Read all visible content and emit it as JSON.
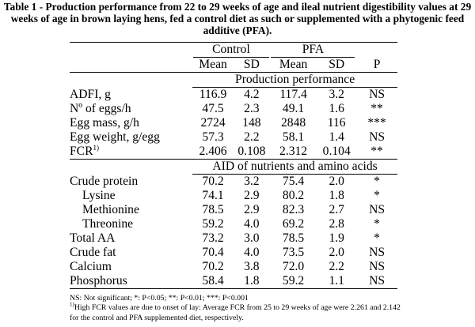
{
  "caption": "Table 1 - Production performance from 22 to 29 weeks of age and ileal nutrient digestibility values at 29 weeks of age in brown laying hens, fed a control diet as such or supplemented with a phytogenic feed additive (PFA).",
  "header": {
    "group_control": "Control",
    "group_pfa": "PFA",
    "mean": "Mean",
    "sd": "SD",
    "p": "P"
  },
  "sections": [
    {
      "title": "Production performance",
      "rows": [
        {
          "label": "ADFI, g",
          "sup": "",
          "cm": "116.9",
          "csd": "4.2",
          "pm": "117.4",
          "psd": "3.2",
          "p": "NS",
          "indent": false
        },
        {
          "label": "Nº of eggs/h",
          "sup": "",
          "cm": "47.5",
          "csd": "2.3",
          "pm": "49.1",
          "psd": "1.6",
          "p": "**",
          "indent": false
        },
        {
          "label": "Egg mass, g/h",
          "sup": "",
          "cm": "2724",
          "csd": "148",
          "pm": "2848",
          "psd": "116",
          "p": "***",
          "indent": false
        },
        {
          "label": "Egg weight, g/egg",
          "sup": "",
          "cm": "57.3",
          "csd": "2.2",
          "pm": "58.1",
          "psd": "1.4",
          "p": "NS",
          "indent": false
        },
        {
          "label": "FCR",
          "sup": "1)",
          "cm": "2.406",
          "csd": "0.108",
          "pm": "2.312",
          "psd": "0.104",
          "p": "**",
          "indent": false
        }
      ]
    },
    {
      "title": "AID of nutrients and amino acids",
      "rows": [
        {
          "label": "Crude protein",
          "sup": "",
          "cm": "70.2",
          "csd": "3.2",
          "pm": "75.4",
          "psd": "2.0",
          "p": "*",
          "indent": false
        },
        {
          "label": "Lysine",
          "sup": "",
          "cm": "74.1",
          "csd": "2.9",
          "pm": "80.2",
          "psd": "1.8",
          "p": "*",
          "indent": true
        },
        {
          "label": "Methionine",
          "sup": "",
          "cm": "78.5",
          "csd": "2.9",
          "pm": "82.3",
          "psd": "2.7",
          "p": "NS",
          "indent": true
        },
        {
          "label": "Threonine",
          "sup": "",
          "cm": "59.2",
          "csd": "4.0",
          "pm": "69.2",
          "psd": "2.8",
          "p": "*",
          "indent": true
        },
        {
          "label": "Total AA",
          "sup": "",
          "cm": "73.2",
          "csd": "3.0",
          "pm": "78.5",
          "psd": "1.9",
          "p": "*",
          "indent": false
        },
        {
          "label": "Crude fat",
          "sup": "",
          "cm": "70.4",
          "csd": "4.0",
          "pm": "73.5",
          "psd": "2.0",
          "p": "NS",
          "indent": false
        },
        {
          "label": "Calcium",
          "sup": "",
          "cm": "70.2",
          "csd": "3.8",
          "pm": "72.0",
          "psd": "2.2",
          "p": "NS",
          "indent": false
        },
        {
          "label": "Phosphorus",
          "sup": "",
          "cm": "58.4",
          "csd": "1.8",
          "pm": "59.2",
          "psd": "1.1",
          "p": "NS",
          "indent": false
        }
      ]
    }
  ],
  "notes": {
    "significance": "NS: Not significant; *: P<0.05; **: P<0.01; ***: P<0.001",
    "footnote_mark": "1)",
    "footnote_text": "High FCR values are due to onset of lay: Average FCR from 25 to 29 weeks of age were 2.261 and 2.142 for the control and PFA supplemented diet, respectively."
  }
}
